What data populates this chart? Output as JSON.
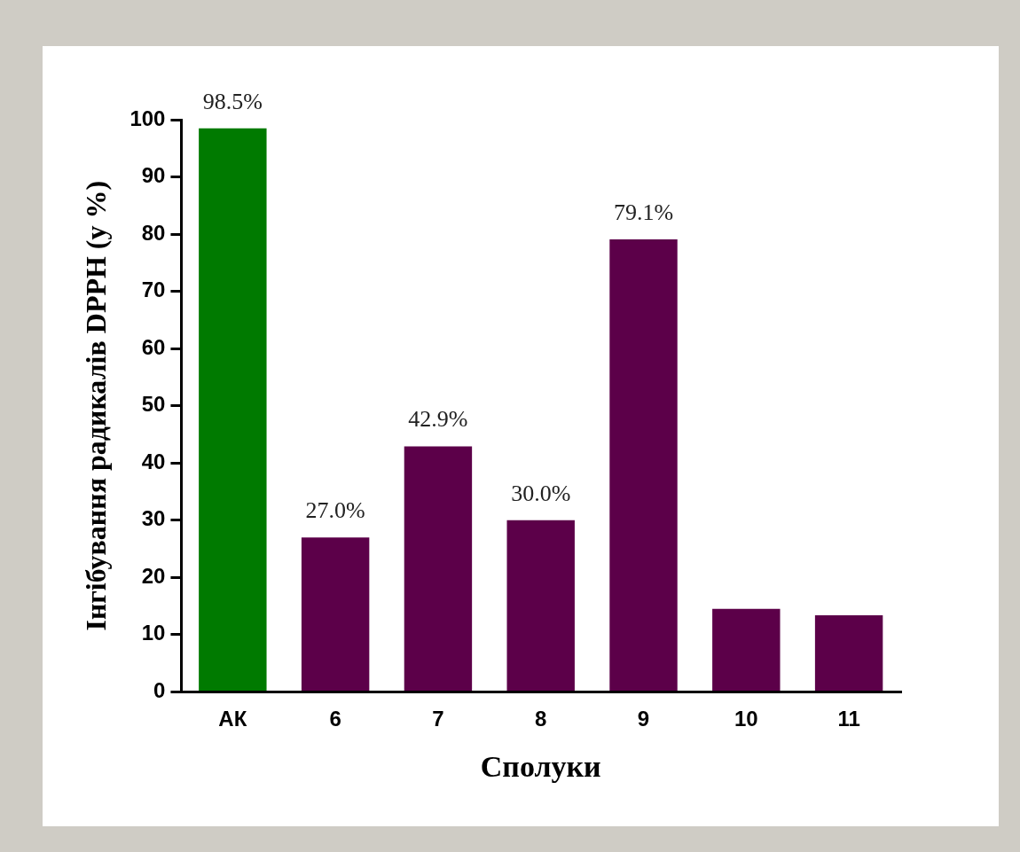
{
  "chart_data": {
    "type": "bar",
    "xlabel": "Сполуки",
    "ylabel": "Інгібування радикалів DPPH (у %)",
    "categories": [
      "АК",
      "6",
      "7",
      "8",
      "9",
      "10",
      "11"
    ],
    "values": [
      98.5,
      27.0,
      42.9,
      30.0,
      79.1,
      14.5,
      13.4
    ],
    "value_labels": [
      "98.5%",
      "27.0%",
      "42.9%",
      "30.0%",
      "79.1%",
      null,
      null
    ],
    "colors": [
      "#007a00",
      "#5c0049",
      "#5c0049",
      "#5c0049",
      "#5c0049",
      "#5c0049",
      "#5c0049"
    ],
    "ylim": [
      0,
      100
    ],
    "yticks": [
      0,
      10,
      20,
      30,
      40,
      50,
      60,
      70,
      80,
      90,
      100
    ],
    "grid": false,
    "legend": false
  }
}
